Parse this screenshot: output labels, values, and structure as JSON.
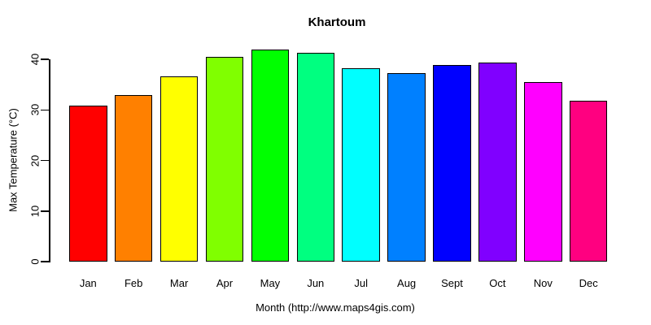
{
  "chart_data": {
    "type": "bar",
    "title": "Khartoum",
    "categories": [
      "Jan",
      "Feb",
      "Mar",
      "Apr",
      "May",
      "Jun",
      "Jul",
      "Aug",
      "Sept",
      "Oct",
      "Nov",
      "Dec"
    ],
    "values": [
      30.8,
      32.9,
      36.6,
      40.5,
      42.0,
      41.3,
      38.3,
      37.3,
      38.9,
      39.4,
      35.6,
      31.8
    ],
    "bar_colors": [
      "#FF0000",
      "#FF8000",
      "#FFFF00",
      "#80FF00",
      "#00FF00",
      "#00FF80",
      "#00FFFF",
      "#0080FF",
      "#0000FF",
      "#8000FF",
      "#FF00FF",
      "#FF0080"
    ],
    "bar_border_color": "#000000",
    "xlabel": "Month (http://www.maps4gis.com)",
    "ylabel": "Max Temperature (°C)",
    "yticks": [
      0,
      10,
      20,
      30,
      40
    ],
    "ylim": [
      0,
      42
    ],
    "grid": false,
    "legend": "none",
    "background": "#FFFFFF",
    "text_color": "#000000"
  }
}
